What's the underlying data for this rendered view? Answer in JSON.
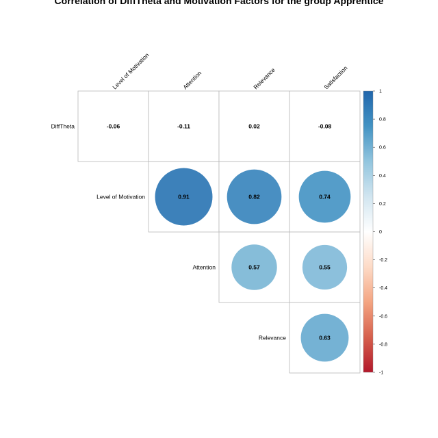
{
  "chart_data": {
    "type": "heatmap",
    "subtype": "correlation-matrix-upper",
    "title": "Correlation of DiffTheta and Motivation Factors for the group Apprentice",
    "row_labels": [
      "DiffTheta",
      "Level of Motivation",
      "Attention",
      "Relevance"
    ],
    "col_labels": [
      "Level of Motivation",
      "Attention",
      "Relevance",
      "Satisfaction"
    ],
    "cells": [
      {
        "row": 0,
        "col": 0,
        "value": -0.06,
        "label": "-0.06",
        "shape": "none"
      },
      {
        "row": 0,
        "col": 1,
        "value": -0.11,
        "label": "-0.11",
        "shape": "none"
      },
      {
        "row": 0,
        "col": 2,
        "value": 0.02,
        "label": "0.02",
        "shape": "none"
      },
      {
        "row": 0,
        "col": 3,
        "value": -0.08,
        "label": "-0.08",
        "shape": "none"
      },
      {
        "row": 1,
        "col": 1,
        "value": 0.91,
        "label": "0.91",
        "shape": "circle"
      },
      {
        "row": 1,
        "col": 2,
        "value": 0.82,
        "label": "0.82",
        "shape": "circle"
      },
      {
        "row": 1,
        "col": 3,
        "value": 0.74,
        "label": "0.74",
        "shape": "circle"
      },
      {
        "row": 2,
        "col": 2,
        "value": 0.57,
        "label": "0.57",
        "shape": "circle"
      },
      {
        "row": 2,
        "col": 3,
        "value": 0.55,
        "label": "0.55",
        "shape": "circle"
      },
      {
        "row": 3,
        "col": 3,
        "value": 0.63,
        "label": "0.63",
        "shape": "circle"
      }
    ],
    "colorbar": {
      "range": [
        -1,
        1
      ],
      "ticks": [
        "1",
        "0.8",
        "0.6",
        "0.4",
        "0.2",
        "0",
        "-0.2",
        "-0.4",
        "-0.6",
        "-0.8",
        "-1"
      ],
      "colors": [
        "#b2182b",
        "#d6604d",
        "#f4a582",
        "#fddbc7",
        "#ffffff",
        "#d1e5f0",
        "#92c5de",
        "#4393c3",
        "#2166ac"
      ]
    }
  }
}
